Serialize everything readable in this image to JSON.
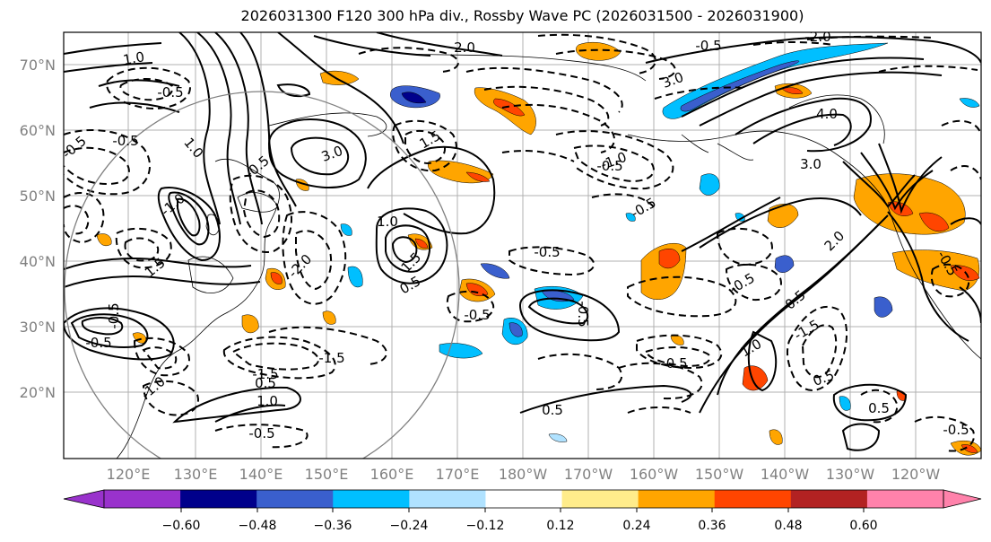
{
  "title": "2026031300 F120 300 hPa div., Rossby Wave PC (2026031500 - 2026031900)",
  "lat_labels": [
    "70°N",
    "60°N",
    "50°N",
    "40°N",
    "30°N",
    "20°N"
  ],
  "lon_labels": [
    "120°E",
    "130°E",
    "140°E",
    "150°E",
    "160°E",
    "170°E",
    "180°W",
    "170°W",
    "160°W",
    "150°W",
    "140°W",
    "130°W",
    "120°W"
  ],
  "contour_labels": [
    "1.0",
    "-0.5",
    "2.0",
    "-0.5",
    "-2.0",
    "-0.5",
    "3.0",
    "4.0",
    "3.0",
    "3.0",
    "1.5",
    "-0.5",
    "-0.5",
    "1.0",
    "-1.0",
    "1.5",
    "-2.0",
    "-0.5",
    "-0.5",
    "0.5",
    "-0.5",
    "-1.5",
    "-1.5",
    "1.0",
    "0.5",
    "-0.5",
    "-1.0",
    "0.5",
    "0.5",
    "-0.5",
    "-1.5",
    "-0.5",
    "1.0",
    "1.0",
    "1.5",
    "-0.5",
    "-0.5",
    "-0.5",
    "0.5",
    "-1.0",
    "0.5",
    "-0.5",
    "-0.5",
    "-0.5",
    "2.0"
  ],
  "colorbar": {
    "ticks": [
      "-0.60",
      "-0.48",
      "-0.36",
      "-0.24",
      "-0.12",
      "0.12",
      "0.24",
      "0.36",
      "0.48",
      "0.60"
    ],
    "colors": [
      "#9932cc",
      "#00008b",
      "#3a5fcd",
      "#00bfff",
      "#b0e2ff",
      "#ffffff",
      "#ffec8b",
      "#ffa500",
      "#ff4500",
      "#b22222",
      "#ff82ab",
      "#ff82ab"
    ]
  }
}
